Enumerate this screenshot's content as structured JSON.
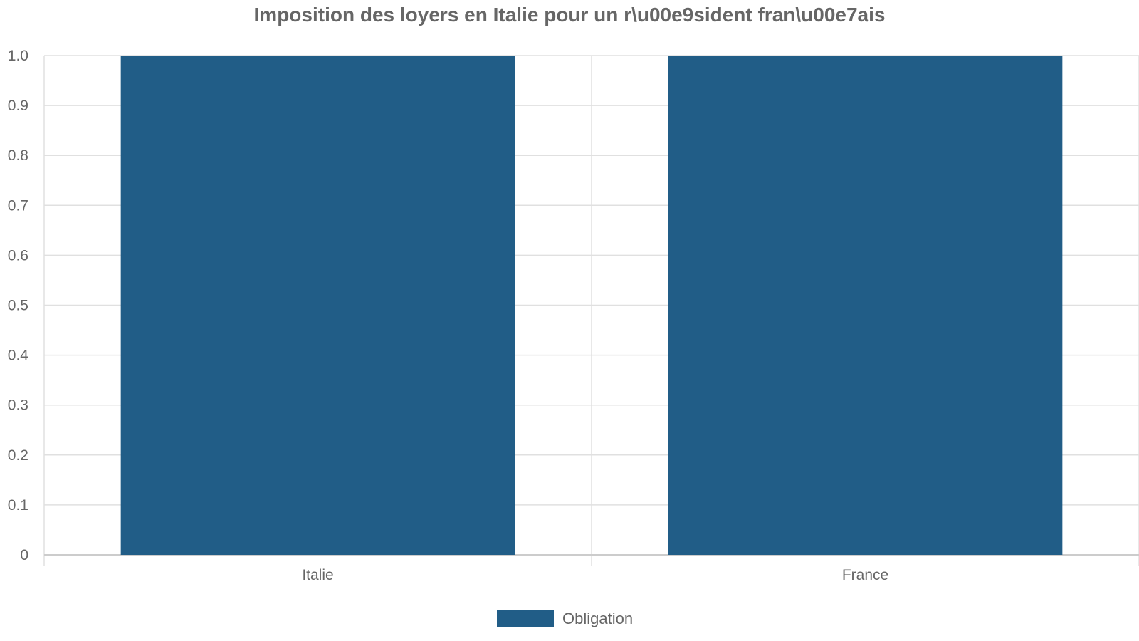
{
  "chart_data": {
    "type": "bar",
    "title": "Imposition des loyers en Italie pour un r\\u00e9sident fran\\u00e7ais",
    "xlabel": "",
    "ylabel": "",
    "categories": [
      "Italie",
      "France"
    ],
    "series": [
      {
        "name": "Obligation",
        "values": [
          1,
          1
        ],
        "color": "#215d87"
      }
    ],
    "ylim": [
      0,
      1
    ],
    "yticks": [
      "0",
      "0.1",
      "0.2",
      "0.3",
      "0.4",
      "0.5",
      "0.6",
      "0.7",
      "0.8",
      "0.9",
      "1.0"
    ],
    "grid": true,
    "legend_position": "bottom-center",
    "colors": {
      "text": "#666666",
      "grid": "#e0e0e0",
      "axis": "#cccccc"
    }
  }
}
